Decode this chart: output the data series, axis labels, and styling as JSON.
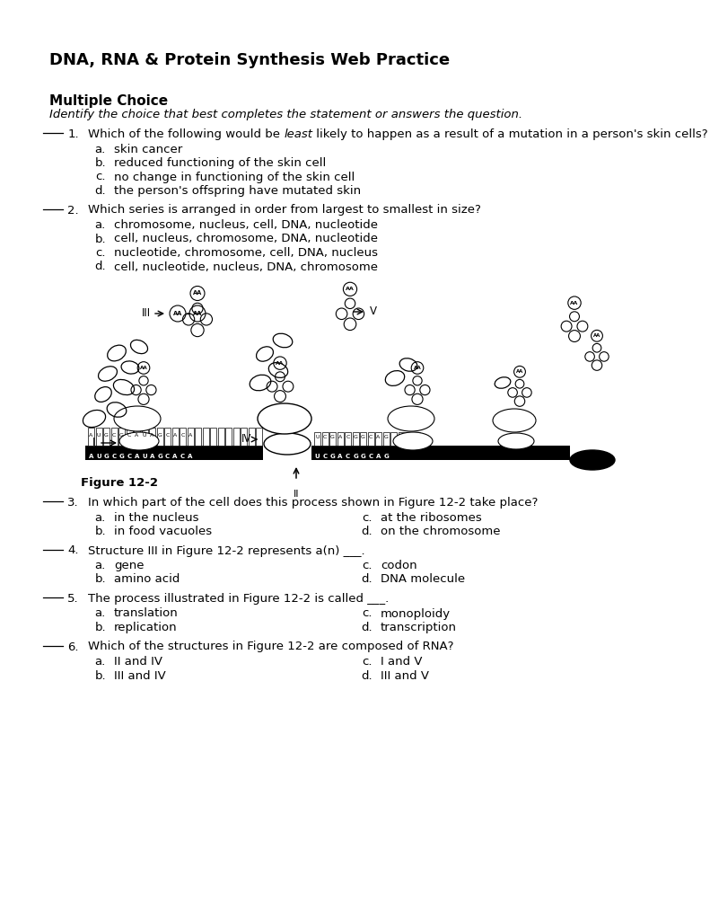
{
  "title": "DNA, RNA & Protein Synthesis Web Practice",
  "section": "Multiple Choice",
  "section_subtitle": "Identify the choice that best completes the statement or answers the question.",
  "bg_color": "#ffffff",
  "text_color": "#000000",
  "q1_text_pre": "Which of the following would be ",
  "q1_text_italic": "least",
  "q1_text_post": " likely to happen as a result of a mutation in a person's skin cells?",
  "q1_choices": [
    [
      "a.",
      "skin cancer"
    ],
    [
      "b.",
      "reduced functioning of the skin cell"
    ],
    [
      "c.",
      "no change in functioning of the skin cell"
    ],
    [
      "d.",
      "the person's offspring have mutated skin"
    ]
  ],
  "q2_text": "Which series is arranged in order from largest to smallest in size?",
  "q2_choices": [
    [
      "a.",
      "chromosome, nucleus, cell, DNA, nucleotide"
    ],
    [
      "b.",
      "cell, nucleus, chromosome, DNA, nucleotide"
    ],
    [
      "c.",
      "nucleotide, chromosome, cell, DNA, nucleus"
    ],
    [
      "d.",
      "cell, nucleotide, nucleus, DNA, chromosome"
    ]
  ],
  "figure_label": "Figure 12-2",
  "q3_text": "In which part of the cell does this process shown in Figure 12-2 take place?",
  "q3_choices": [
    [
      "a.",
      "in the nucleus"
    ],
    [
      "b.",
      "in food vacuoles"
    ],
    [
      "c.",
      "at the ribosomes"
    ],
    [
      "d.",
      "on the chromosome"
    ]
  ],
  "q4_text": "Structure III in Figure 12-2 represents a(n) ___.",
  "q4_choices": [
    [
      "a.",
      "gene"
    ],
    [
      "b.",
      "amino acid"
    ],
    [
      "c.",
      "codon"
    ],
    [
      "d.",
      "DNA molecule"
    ]
  ],
  "q5_text": "The process illustrated in Figure 12-2 is called ___.",
  "q5_choices": [
    [
      "a.",
      "translation"
    ],
    [
      "b.",
      "replication"
    ],
    [
      "c.",
      "monoploidy"
    ],
    [
      "d.",
      "transcription"
    ]
  ],
  "q6_text": "Which of the structures in Figure 12-2 are composed of RNA?",
  "q6_choices": [
    [
      "a.",
      "II and IV"
    ],
    [
      "b.",
      "III and IV"
    ],
    [
      "c.",
      "I and V"
    ],
    [
      "d.",
      "III and V"
    ]
  ],
  "font_size_title": 13,
  "font_size_section": 11,
  "font_size_body": 9.5
}
